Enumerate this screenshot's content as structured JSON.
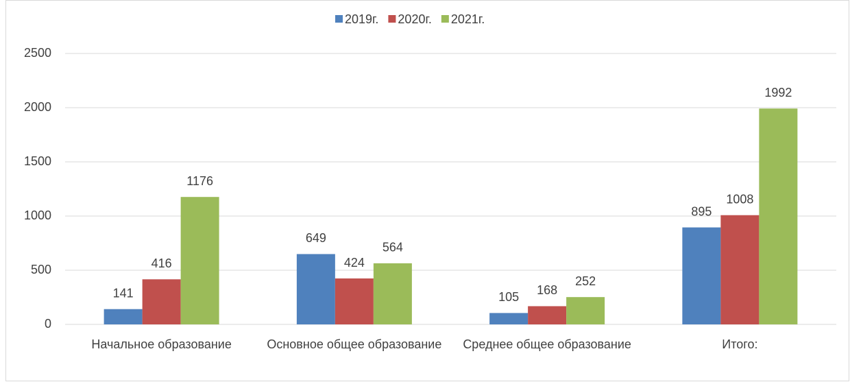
{
  "chart_data": {
    "type": "bar",
    "categories": [
      "Начальное образование",
      "Основное общее образование",
      "Среднее общее образование",
      "Итого:"
    ],
    "series": [
      {
        "name": "2019г.",
        "color": "#4f81bd",
        "values": [
          141,
          649,
          105,
          895
        ]
      },
      {
        "name": "2020г.",
        "color": "#c0504d",
        "values": [
          416,
          424,
          168,
          1008
        ]
      },
      {
        "name": "2021г.",
        "color": "#9bbb59",
        "values": [
          1176,
          564,
          252,
          1992
        ]
      }
    ],
    "ylim": [
      0,
      2500
    ],
    "yticks": [
      0,
      500,
      1000,
      1500,
      2000,
      2500
    ],
    "grid": true,
    "legend": "top"
  }
}
